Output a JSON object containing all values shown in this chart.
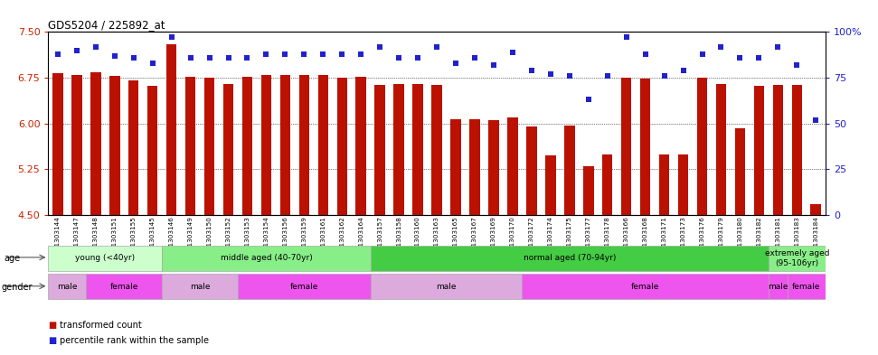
{
  "title": "GDS5204 / 225892_at",
  "samples": [
    "GSM1303144",
    "GSM1303147",
    "GSM1303148",
    "GSM1303151",
    "GSM1303155",
    "GSM1303145",
    "GSM1303146",
    "GSM1303149",
    "GSM1303150",
    "GSM1303152",
    "GSM1303153",
    "GSM1303154",
    "GSM1303156",
    "GSM1303159",
    "GSM1303161",
    "GSM1303162",
    "GSM1303164",
    "GSM1303157",
    "GSM1303158",
    "GSM1303160",
    "GSM1303163",
    "GSM1303165",
    "GSM1303167",
    "GSM1303169",
    "GSM1303170",
    "GSM1303172",
    "GSM1303174",
    "GSM1303175",
    "GSM1303177",
    "GSM1303178",
    "GSM1303166",
    "GSM1303168",
    "GSM1303171",
    "GSM1303173",
    "GSM1303176",
    "GSM1303179",
    "GSM1303180",
    "GSM1303182",
    "GSM1303181",
    "GSM1303183",
    "GSM1303184"
  ],
  "bar_values": [
    6.83,
    6.8,
    6.84,
    6.78,
    6.7,
    6.62,
    7.3,
    6.76,
    6.75,
    6.65,
    6.76,
    6.8,
    6.8,
    6.8,
    6.8,
    6.75,
    6.76,
    6.63,
    6.65,
    6.65,
    6.63,
    6.07,
    6.07,
    6.05,
    6.1,
    5.95,
    5.48,
    5.97,
    5.3,
    5.49,
    6.75,
    6.73,
    5.49,
    5.49,
    6.75,
    6.65,
    5.92,
    6.62,
    6.63,
    6.63,
    4.68
  ],
  "percentile_values": [
    88,
    90,
    92,
    87,
    86,
    83,
    97,
    86,
    86,
    86,
    86,
    88,
    88,
    88,
    88,
    88,
    88,
    92,
    86,
    86,
    92,
    83,
    86,
    82,
    89,
    79,
    77,
    76,
    63,
    76,
    97,
    88,
    76,
    79,
    88,
    92,
    86,
    86,
    92,
    82,
    52
  ],
  "ylim_left": [
    4.5,
    7.5
  ],
  "ylim_right": [
    0,
    100
  ],
  "yticks_left": [
    4.5,
    5.25,
    6.0,
    6.75,
    7.5
  ],
  "yticks_right": [
    0,
    25,
    50,
    75,
    100
  ],
  "bar_color": "#bb1100",
  "dot_color": "#2222cc",
  "background_color": "#ffffff",
  "age_groups": [
    {
      "label": "young (<40yr)",
      "start": 0,
      "end": 6,
      "color": "#ccffcc"
    },
    {
      "label": "middle aged (40-70yr)",
      "start": 6,
      "end": 17,
      "color": "#88ee88"
    },
    {
      "label": "normal aged (70-94yr)",
      "start": 17,
      "end": 38,
      "color": "#44cc44"
    },
    {
      "label": "extremely aged\n(95-106yr)",
      "start": 38,
      "end": 41,
      "color": "#88ee88"
    }
  ],
  "gender_groups": [
    {
      "label": "male",
      "start": 0,
      "end": 2,
      "color": "#ddaadd"
    },
    {
      "label": "female",
      "start": 2,
      "end": 6,
      "color": "#ee55ee"
    },
    {
      "label": "male",
      "start": 6,
      "end": 10,
      "color": "#ddaadd"
    },
    {
      "label": "female",
      "start": 10,
      "end": 17,
      "color": "#ee55ee"
    },
    {
      "label": "male",
      "start": 17,
      "end": 25,
      "color": "#ddaadd"
    },
    {
      "label": "female",
      "start": 25,
      "end": 38,
      "color": "#ee55ee"
    },
    {
      "label": "male",
      "start": 38,
      "end": 39,
      "color": "#ee55ee"
    },
    {
      "label": "female",
      "start": 39,
      "end": 41,
      "color": "#ee55ee"
    }
  ]
}
